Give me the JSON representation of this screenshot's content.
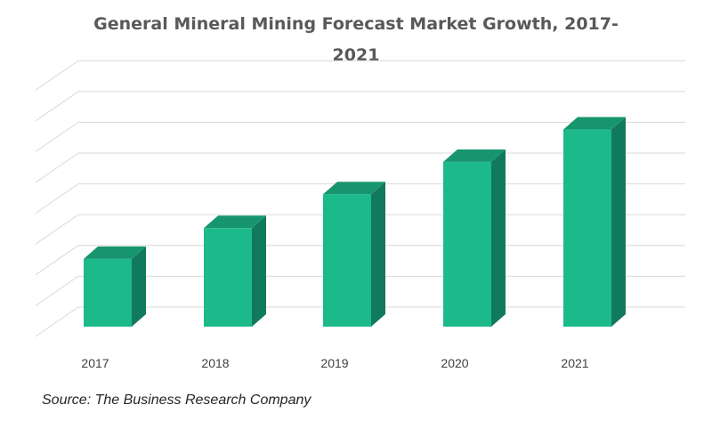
{
  "chart_data": {
    "type": "bar",
    "title_lines": [
      "General Mineral Mining Forecast Market Growth, 2017-",
      "2021"
    ],
    "categories": [
      "2017",
      "2018",
      "2019",
      "2020",
      "2021"
    ],
    "values": [
      2.2,
      3.2,
      4.3,
      5.35,
      6.4
    ],
    "ylim": [
      0,
      8
    ],
    "y_tick_labels_shown": false,
    "grid": true,
    "style": "3d-column",
    "colors": {
      "front": "#1CB98A",
      "side": "#127A5C",
      "top": "#17956F",
      "grid": "#D9D9D9"
    }
  },
  "source": "Source: The Business  Research Company"
}
